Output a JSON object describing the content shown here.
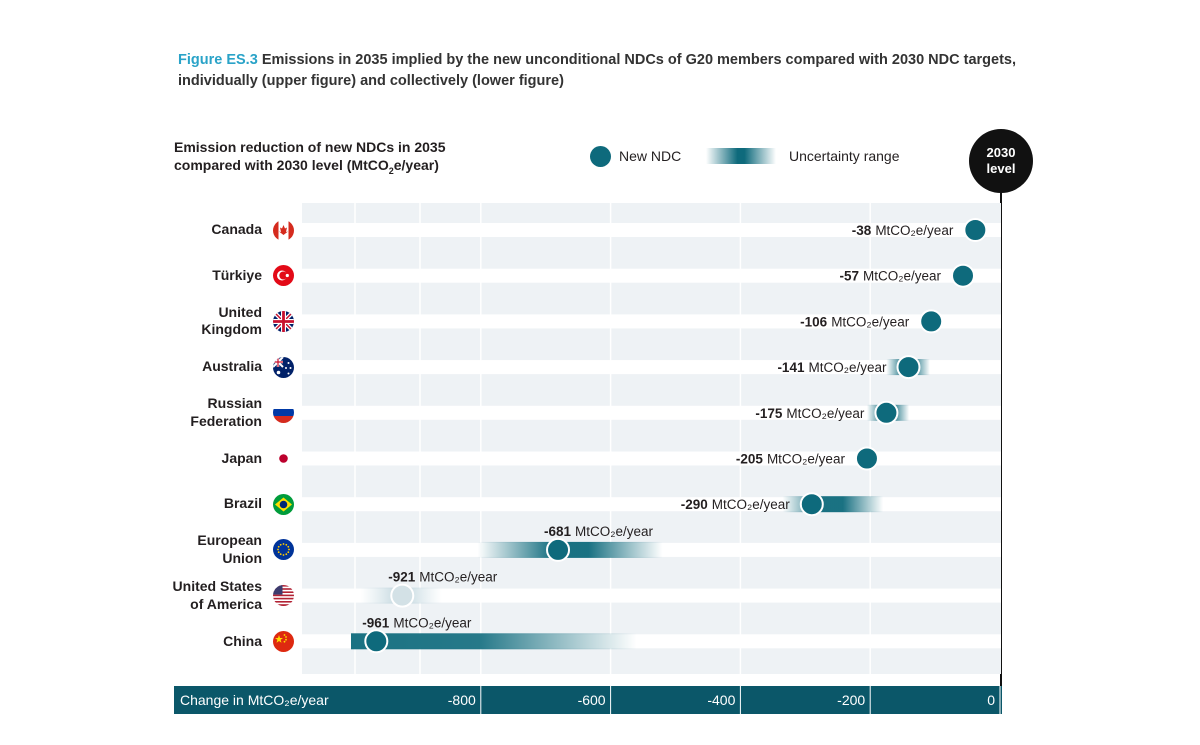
{
  "title": {
    "figure_label": "Figure ES.3",
    "text": "Emissions in 2035 implied by the new unconditional NDCs of G20 members compared with 2030 NDC targets, individually (upper figure) and collectively (lower figure)"
  },
  "header": {
    "line1": "Emission reduction of new NDCs in 2035",
    "line2_prefix": "compared with 2030 level (MtCO",
    "line2_sub": "2",
    "line2_suffix": "e/year)"
  },
  "legend": {
    "new_ndc": "New NDC",
    "uncertainty": "Uncertainty range"
  },
  "reference": {
    "line1": "2030",
    "line2": "level"
  },
  "axis": {
    "label": "Change in  MtCO₂e/year",
    "ticks": [
      "-800",
      "-600",
      "-400",
      "-200",
      "0"
    ]
  },
  "unit_label": "MtCO₂e/year",
  "colors": {
    "accent": "#0e6a7c",
    "axis_bar": "#0b5769",
    "figure_label": "#2aa3c8",
    "stripe": "#eef2f5",
    "us_marker": "#d3e1e6"
  },
  "chart_data": {
    "type": "scatter",
    "orientation": "horizontal",
    "xlim": [
      -1000,
      0
    ],
    "xlabel": "Change in  MtCO₂e/year",
    "grid": true,
    "legend_position": "top",
    "rows": [
      {
        "name": "Canada",
        "label_lines": [
          "Canada"
        ],
        "flag": "canada-flag",
        "value": -38,
        "range": null
      },
      {
        "name": "Türkiye",
        "label_lines": [
          "Türkiye"
        ],
        "flag": "turkiye-flag",
        "value": -57,
        "range": null
      },
      {
        "name": "United Kingdom",
        "label_lines": [
          "United",
          "Kingdom"
        ],
        "flag": "uk-flag",
        "value": -106,
        "range": null
      },
      {
        "name": "Australia",
        "label_lines": [
          "Australia"
        ],
        "flag": "australia-flag",
        "value": -141,
        "range": [
          -175,
          -108
        ]
      },
      {
        "name": "Russian Federation",
        "label_lines": [
          "Russian",
          "Federation"
        ],
        "flag": "russia-flag",
        "value": -175,
        "range": [
          -205,
          -140
        ]
      },
      {
        "name": "Japan",
        "label_lines": [
          "Japan"
        ],
        "flag": "japan-flag",
        "value": -205,
        "range": null
      },
      {
        "name": "Brazil",
        "label_lines": [
          "Brazil"
        ],
        "flag": "brazil-flag",
        "value": -290,
        "range": [
          -335,
          -180
        ]
      },
      {
        "name": "European Union",
        "label_lines": [
          "European",
          "Union"
        ],
        "flag": "eu-flag",
        "value": -681,
        "range": [
          -805,
          -520
        ]
      },
      {
        "name": "United States of America",
        "label_lines": [
          "United States",
          "of America"
        ],
        "flag": "usa-flag",
        "value": -921,
        "range": [
          -985,
          -860
        ]
      },
      {
        "name": "China",
        "label_lines": [
          "China"
        ],
        "flag": "china-flag",
        "value": -961,
        "range": [
          -1000,
          -560
        ]
      }
    ]
  }
}
